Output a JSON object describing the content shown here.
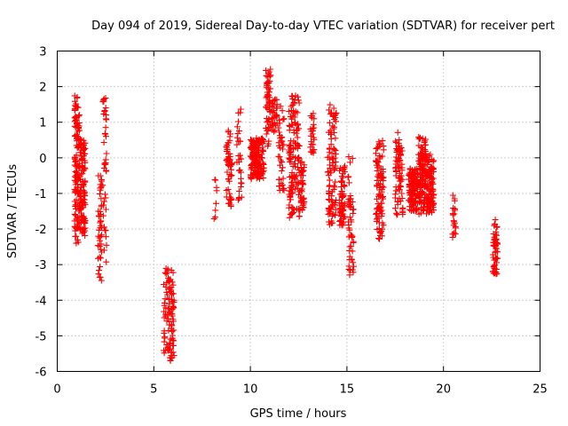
{
  "chart_data": {
    "type": "scatter",
    "title": "Day 094 of 2019, Sidereal Day-to-day VTEC variation (SDTVAR) for receiver pert",
    "xlabel": "GPS time / hours",
    "ylabel": "SDTVAR / TECUs",
    "xlim": [
      0,
      25
    ],
    "ylim": [
      -6,
      3
    ],
    "xticks": [
      0,
      5,
      10,
      15,
      20,
      25
    ],
    "yticks": [
      -6,
      -5,
      -4,
      -3,
      -2,
      -1,
      0,
      1,
      2,
      3
    ],
    "xtick_labels": [
      "0",
      "5",
      "10",
      "15",
      "20",
      "25"
    ],
    "ytick_labels": [
      "-6",
      "-5",
      "-4",
      "-3",
      "-2",
      "-1",
      "0",
      "1",
      "2",
      "3"
    ],
    "grid": true,
    "marker": "+",
    "color": "#ff0000",
    "clusters": [
      {
        "x": [
          0.9,
          1.15
        ],
        "y": [
          -2.4,
          1.75
        ],
        "n": 120
      },
      {
        "x": [
          1.15,
          1.45
        ],
        "y": [
          -2.2,
          0.6
        ],
        "n": 110
      },
      {
        "x": [
          2.1,
          2.3
        ],
        "y": [
          -3.5,
          -0.4
        ],
        "n": 45
      },
      {
        "x": [
          2.35,
          2.55
        ],
        "y": [
          -3.1,
          1.75
        ],
        "n": 40
      },
      {
        "x": [
          5.5,
          5.8
        ],
        "y": [
          -5.6,
          -3.1
        ],
        "n": 45
      },
      {
        "x": [
          5.8,
          6.05
        ],
        "y": [
          -5.7,
          -3.1
        ],
        "n": 60
      },
      {
        "x": [
          8.1,
          8.3
        ],
        "y": [
          -1.75,
          -0.5
        ],
        "n": 8
      },
      {
        "x": [
          8.75,
          9.05
        ],
        "y": [
          -1.4,
          0.8
        ],
        "n": 55
      },
      {
        "x": [
          9.3,
          9.55
        ],
        "y": [
          -1.2,
          1.65
        ],
        "n": 30
      },
      {
        "x": [
          10.0,
          10.7
        ],
        "y": [
          -0.6,
          0.55
        ],
        "n": 170
      },
      {
        "x": [
          10.8,
          11.05
        ],
        "y": [
          0.3,
          2.5
        ],
        "n": 55
      },
      {
        "x": [
          11.1,
          11.4
        ],
        "y": [
          0.6,
          1.7
        ],
        "n": 30
      },
      {
        "x": [
          11.45,
          11.75
        ],
        "y": [
          -1.0,
          1.5
        ],
        "n": 40
      },
      {
        "x": [
          12.0,
          12.55
        ],
        "y": [
          -1.7,
          1.8
        ],
        "n": 130
      },
      {
        "x": [
          12.55,
          12.8
        ],
        "y": [
          -1.5,
          -0.1
        ],
        "n": 40
      },
      {
        "x": [
          13.1,
          13.3
        ],
        "y": [
          0.0,
          1.3
        ],
        "n": 25
      },
      {
        "x": [
          14.0,
          14.45
        ],
        "y": [
          -1.9,
          1.5
        ],
        "n": 95
      },
      {
        "x": [
          14.6,
          14.9
        ],
        "y": [
          -1.9,
          -0.2
        ],
        "n": 60
      },
      {
        "x": [
          15.05,
          15.35
        ],
        "y": [
          -3.3,
          0.1
        ],
        "n": 50
      },
      {
        "x": [
          16.5,
          16.9
        ],
        "y": [
          -2.3,
          0.5
        ],
        "n": 95
      },
      {
        "x": [
          17.5,
          17.9
        ],
        "y": [
          -1.6,
          0.8
        ],
        "n": 75
      },
      {
        "x": [
          18.2,
          18.7
        ],
        "y": [
          -1.5,
          -0.3
        ],
        "n": 130
      },
      {
        "x": [
          18.7,
          19.1
        ],
        "y": [
          -1.6,
          0.6
        ],
        "n": 120
      },
      {
        "x": [
          19.1,
          19.5
        ],
        "y": [
          -1.6,
          0.1
        ],
        "n": 110
      },
      {
        "x": [
          20.45,
          20.65
        ],
        "y": [
          -2.4,
          -1.0
        ],
        "n": 20
      },
      {
        "x": [
          22.55,
          22.8
        ],
        "y": [
          -3.3,
          -1.7
        ],
        "n": 55
      }
    ]
  }
}
